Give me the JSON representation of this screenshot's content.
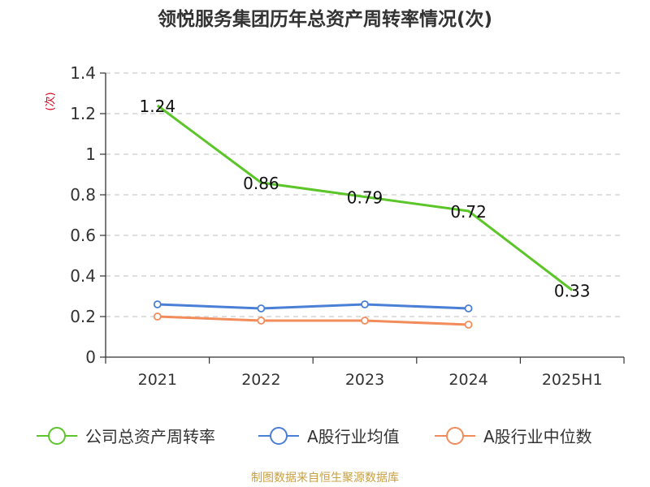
{
  "chart_data": {
    "type": "line",
    "title": "领悦服务集团历年总资产周转率情况(次)",
    "ylabel": "(次)",
    "xlabel": "",
    "categories": [
      "2021",
      "2022",
      "2023",
      "2024",
      "2025H1"
    ],
    "yticks": [
      "0",
      "0.2",
      "0.4",
      "0.6",
      "0.8",
      "1",
      "1.2",
      "1.4"
    ],
    "ylim": [
      0,
      1.4
    ],
    "grid": true,
    "legend_position": "bottom",
    "series": [
      {
        "name": "公司总资产周转率",
        "values": [
          1.24,
          0.86,
          0.79,
          0.72,
          0.33
        ],
        "labels": [
          "1.24",
          "0.86",
          "0.79",
          "0.72",
          "0.33"
        ],
        "color": "#5cc52a"
      },
      {
        "name": "A股行业均值",
        "values": [
          0.26,
          0.24,
          0.26,
          0.24,
          null
        ],
        "color": "#4a7fd6"
      },
      {
        "name": "A股行业中位数",
        "values": [
          0.2,
          0.18,
          0.18,
          0.16,
          null
        ],
        "color": "#f28c5b"
      }
    ]
  },
  "footer": {
    "source": "制图数据来自恒生聚源数据库",
    "source_color": "#c8a040"
  },
  "colors": {
    "ylabel": "#d9001b"
  }
}
